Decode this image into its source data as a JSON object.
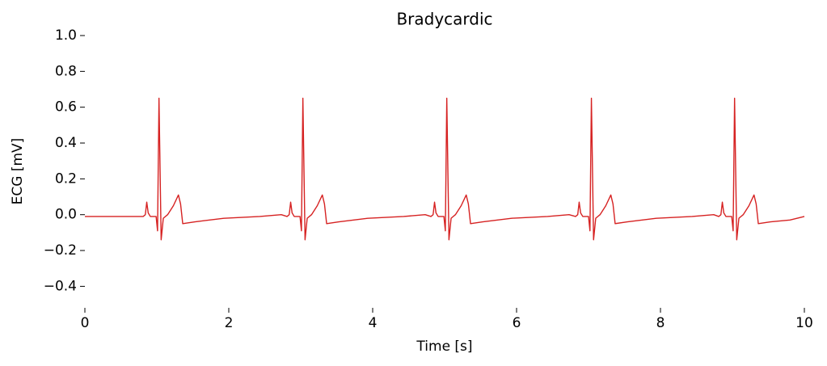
{
  "chart_data": {
    "type": "line",
    "title": "Bradycardic",
    "x_label": "Time [s]",
    "y_label": "ECG [mV]",
    "xlim": [
      0,
      10
    ],
    "ylim": [
      -0.52,
      1.0
    ],
    "xticks": [
      0,
      2,
      4,
      6,
      8,
      10
    ],
    "yticks": [
      {
        "value": -0.4,
        "label": "−0.4"
      },
      {
        "value": -0.2,
        "label": "−0.2"
      },
      {
        "value": 0,
        "label": "0.0"
      },
      0.2,
      0.4,
      0.6,
      0.8,
      {
        "value": 1,
        "label": "1.0"
      }
    ],
    "grid": false,
    "series": [
      {
        "color": "#d62222",
        "x": [
          0,
          0.4,
          0.81,
          0.84,
          0.86,
          0.88,
          0.91,
          0.99,
          1.01,
          1.03,
          1.06,
          1.09,
          1.15,
          1.23,
          1.3,
          1.33,
          1.36,
          1.53,
          1.93,
          2.43,
          2.73,
          2.81,
          2.84,
          2.86,
          2.88,
          2.91,
          2.99,
          3.01,
          3.03,
          3.06,
          3.09,
          3.15,
          3.23,
          3.3,
          3.33,
          3.36,
          3.53,
          3.93,
          4.43,
          4.73,
          4.81,
          4.84,
          4.86,
          4.88,
          4.91,
          4.99,
          5.01,
          5.03,
          5.06,
          5.09,
          5.15,
          5.23,
          5.3,
          5.33,
          5.36,
          5.53,
          5.93,
          6.43,
          6.73,
          6.82,
          6.85,
          6.87,
          6.89,
          6.92,
          7.0,
          7.02,
          7.04,
          7.07,
          7.1,
          7.16,
          7.24,
          7.31,
          7.34,
          7.37,
          7.54,
          7.94,
          8.44,
          8.74,
          8.81,
          8.84,
          8.86,
          8.88,
          8.91,
          8.99,
          9.01,
          9.03,
          9.06,
          9.09,
          9.15,
          9.23,
          9.3,
          9.33,
          9.36,
          9.53,
          9.8,
          10.0
        ],
        "values": [
          -0.01,
          -0.01,
          -0.01,
          0.0,
          0.07,
          0.01,
          -0.01,
          -0.01,
          -0.09,
          0.65,
          -0.14,
          -0.02,
          0.0,
          0.05,
          0.11,
          0.06,
          -0.05,
          -0.04,
          -0.02,
          -0.01,
          0.0,
          -0.01,
          0.0,
          0.07,
          0.01,
          -0.01,
          -0.01,
          -0.09,
          0.65,
          -0.14,
          -0.02,
          0.0,
          0.05,
          0.11,
          0.06,
          -0.05,
          -0.04,
          -0.02,
          -0.01,
          0.0,
          -0.01,
          0.0,
          0.07,
          0.01,
          -0.01,
          -0.01,
          -0.09,
          0.65,
          -0.14,
          -0.02,
          0.0,
          0.05,
          0.11,
          0.06,
          -0.05,
          -0.04,
          -0.02,
          -0.01,
          0.0,
          -0.01,
          0.0,
          0.07,
          0.01,
          -0.01,
          -0.01,
          -0.09,
          0.65,
          -0.14,
          -0.02,
          0.0,
          0.05,
          0.11,
          0.06,
          -0.05,
          -0.04,
          -0.02,
          -0.01,
          0.0,
          -0.01,
          0.0,
          0.07,
          0.01,
          -0.01,
          -0.01,
          -0.09,
          0.65,
          -0.14,
          -0.02,
          0.0,
          0.05,
          0.11,
          0.06,
          -0.05,
          -0.04,
          -0.03,
          -0.01
        ]
      }
    ]
  }
}
